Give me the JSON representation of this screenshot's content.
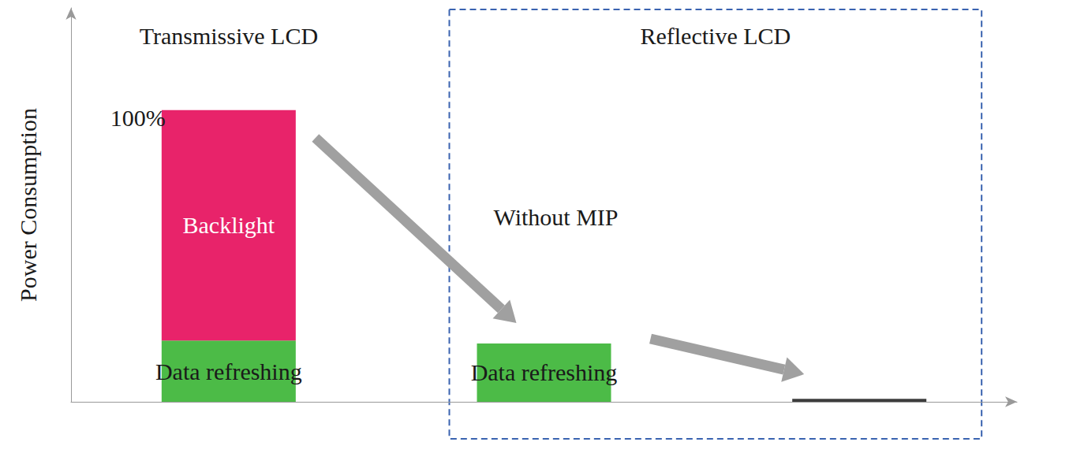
{
  "chart_data": {
    "type": "bar",
    "stacked": true,
    "ylabel": "Power Consumption",
    "categories": [
      null,
      null,
      null
    ],
    "series": [
      {
        "name": "Data refreshing",
        "colors": [
          "#4cbb47",
          "#4cbb47",
          null
        ],
        "values": [
          21,
          20,
          null
        ]
      },
      {
        "name": "Backlight",
        "color": "#e8236a",
        "values": [
          79,
          null,
          null
        ]
      },
      {
        "color": "#3c3c3c",
        "values": [
          null,
          null,
          1
        ]
      }
    ],
    "ylim": [
      0,
      135
    ],
    "tick_labels": false,
    "grid": false,
    "groups": [
      {
        "label": "Transmissive LCD",
        "categories": [
          0
        ]
      },
      {
        "label": "Reflective LCD",
        "categories": [
          1,
          2
        ]
      }
    ],
    "annotations": [
      {
        "text": "100%",
        "value": 100
      },
      {
        "text": "Without MIP",
        "category": 1
      }
    ]
  }
}
